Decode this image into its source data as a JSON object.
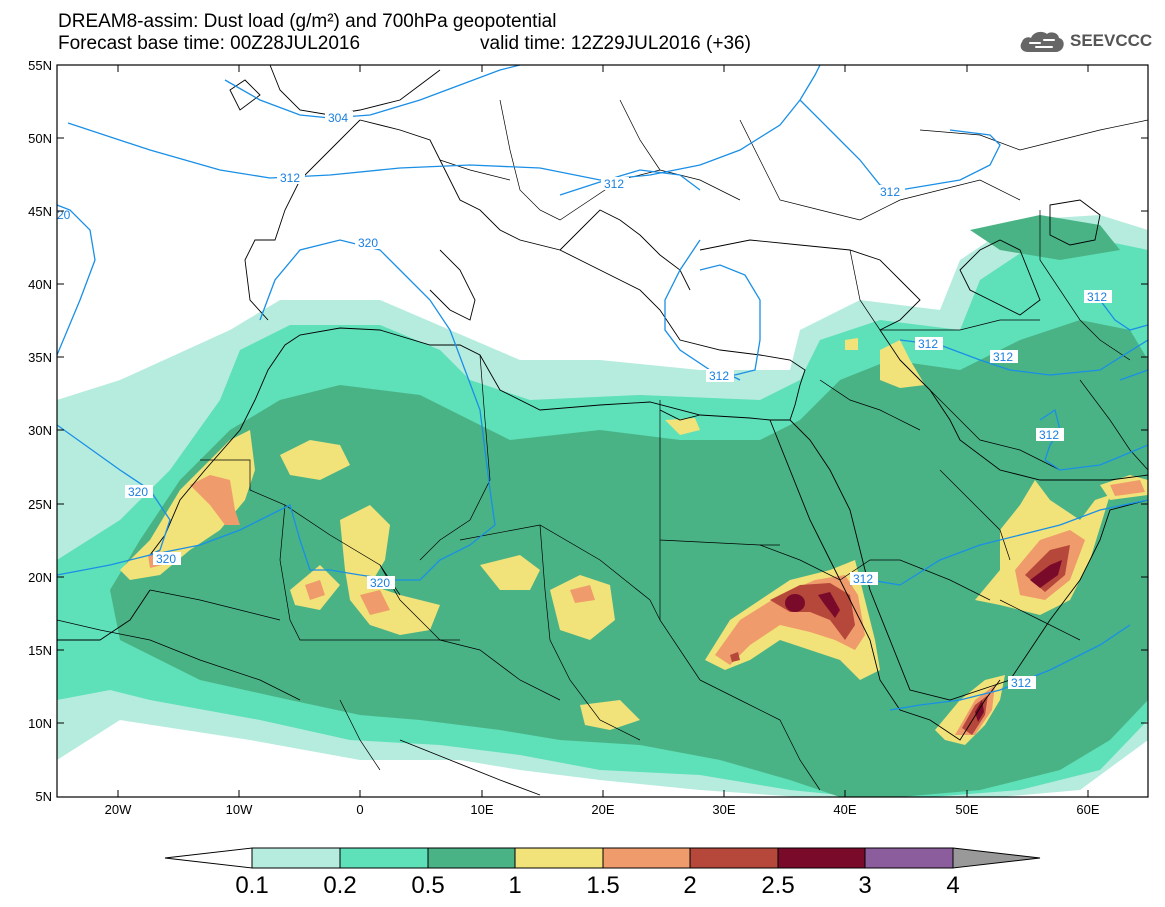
{
  "header": {
    "title": "DREAM8-assim: Dust load (g/m²) and 700hPa geopotential",
    "base_time": "Forecast base time: 00Z28JUL2016",
    "valid_time": "valid time: 12Z29JUL2016 (+36)"
  },
  "logo": {
    "text": "SEEVCCC",
    "icon": "cloud-icon"
  },
  "map": {
    "lat_labels": [
      "55N",
      "50N",
      "45N",
      "40N",
      "35N",
      "30N",
      "25N",
      "20N",
      "15N",
      "10N",
      "5N"
    ],
    "lon_labels": [
      "20W",
      "10W",
      "0",
      "10E",
      "20E",
      "30E",
      "40E",
      "50E",
      "60E"
    ],
    "contour_labels": [
      "304",
      "312",
      "312",
      "312",
      "320",
      "320",
      "320",
      "320",
      "312",
      "312",
      "312",
      "312",
      "312",
      "312",
      "312",
      "20"
    ]
  },
  "colorbar": {
    "labels": [
      "0.1",
      "0.2",
      "0.5",
      "1",
      "1.5",
      "2",
      "2.5",
      "3",
      "4"
    ],
    "colors": [
      "#b5ecde",
      "#5ee0b8",
      "#49b386",
      "#f2e27a",
      "#ef9b6b",
      "#b5473b",
      "#7a0a2a",
      "#8c5d9c"
    ],
    "under_color": "#ffffff",
    "over_color": "#999999"
  }
}
